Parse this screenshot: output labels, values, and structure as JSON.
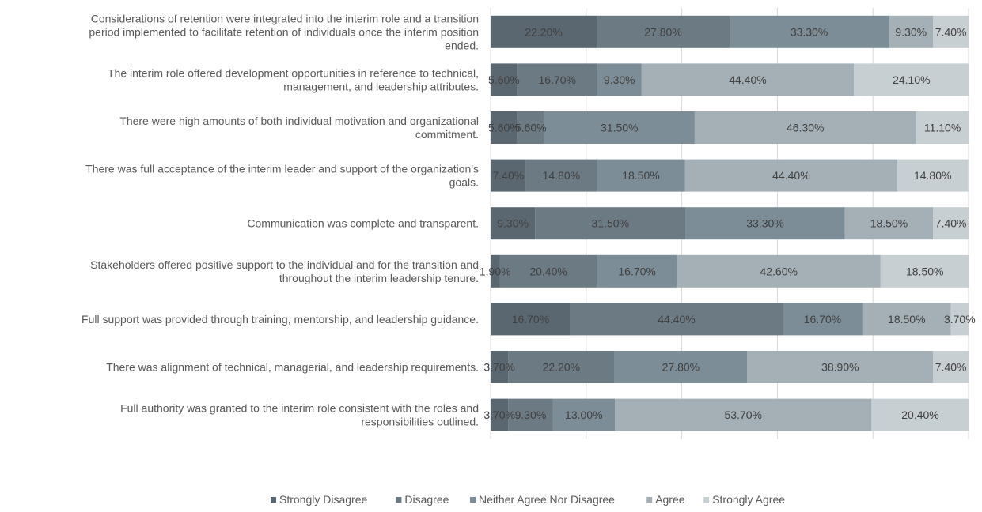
{
  "chart_data": {
    "type": "bar",
    "orientation": "horizontal",
    "stacked": "percent",
    "title": "",
    "xlabel": "",
    "ylabel": "",
    "xlim": [
      0,
      100
    ],
    "grid": "vertical",
    "legend_position": "bottom",
    "value_label_suffix": "%",
    "categories": [
      "Considerations of retention were integrated into the interim role and a transition period implemented to facilitate retention of individuals once the interim position ended.",
      "The interim role offered development opportunities in reference to technical, management, and leadership attributes.",
      "There were high amounts of both individual motivation and organizational commitment.",
      "There was full acceptance of the interim leader and support of the organization's goals.",
      "Communication was complete and transparent.",
      "Stakeholders offered positive support to the individual and for the transition and throughout the interim leadership tenure.",
      "Full support was provided through training, mentorship, and leadership guidance.",
      "There was alignment of technical, managerial, and leadership requirements.",
      "Full authority was granted to the interim role consistent with the roles and responsibilities outlined."
    ],
    "category_lines": [
      [
        "Considerations of retention were integrated into the interim role and a transition",
        "period implemented to facilitate retention of individuals once the interim position",
        "ended."
      ],
      [
        "The interim role offered development opportunities in reference to technical,",
        "management, and leadership attributes."
      ],
      [
        "There were high amounts of both individual motivation and organizational",
        "commitment."
      ],
      [
        "There was full acceptance of the interim leader and support of the organization's",
        "goals."
      ],
      [
        "Communication was complete and transparent."
      ],
      [
        "Stakeholders offered positive support to the individual and for the transition and",
        "throughout the interim leadership tenure."
      ],
      [
        "Full support was provided through training, mentorship, and leadership guidance."
      ],
      [
        "There was alignment of technical, managerial, and leadership requirements."
      ],
      [
        "Full authority was granted to the interim role consistent with the roles and",
        "responsibilities outlined."
      ]
    ],
    "series": [
      {
        "name": "Strongly Disagree",
        "color": "#5b6770",
        "values": [
          22.2,
          5.6,
          5.6,
          7.4,
          9.3,
          1.9,
          16.7,
          3.7,
          3.7
        ]
      },
      {
        "name": "Disagree",
        "color": "#6c7a84",
        "values": [
          27.8,
          16.7,
          5.6,
          14.8,
          31.5,
          20.4,
          44.4,
          22.2,
          9.3
        ]
      },
      {
        "name": "Neither Agree Nor Disagree",
        "color": "#7c8d97",
        "values": [
          33.3,
          9.3,
          31.5,
          18.5,
          33.3,
          16.7,
          16.7,
          27.8,
          13.0
        ]
      },
      {
        "name": "Agree",
        "color": "#a5b0b6",
        "values": [
          9.3,
          44.4,
          46.3,
          44.4,
          18.5,
          42.6,
          18.5,
          38.9,
          53.7
        ]
      },
      {
        "name": "Strongly Agree",
        "color": "#c8cfd2",
        "values": [
          7.4,
          24.1,
          11.1,
          14.8,
          7.4,
          18.5,
          3.7,
          7.4,
          20.4
        ]
      }
    ],
    "value_labels": [
      [
        "22.20%",
        "27.80%",
        "33.30%",
        "9.30%",
        "7.40%"
      ],
      [
        "5.60%",
        "16.70%",
        "9.30%",
        "44.40%",
        "24.10%"
      ],
      [
        "5.60%",
        "5.60%",
        "31.50%",
        "46.30%",
        "11.10%"
      ],
      [
        "7.40%",
        "14.80%",
        "18.50%",
        "44.40%",
        "14.80%"
      ],
      [
        "9.30%",
        "31.50%",
        "33.30%",
        "18.50%",
        "7.40%"
      ],
      [
        "1.90%",
        "20.40%",
        "16.70%",
        "42.60%",
        "18.50%"
      ],
      [
        "16.70%",
        "44.40%",
        "16.70%",
        "18.50%",
        "3.70%"
      ],
      [
        "3.70%",
        "22.20%",
        "27.80%",
        "38.90%",
        "7.40%"
      ],
      [
        "3.70%",
        "9.30%",
        "13.00%",
        "53.70%",
        "20.40%"
      ]
    ]
  }
}
